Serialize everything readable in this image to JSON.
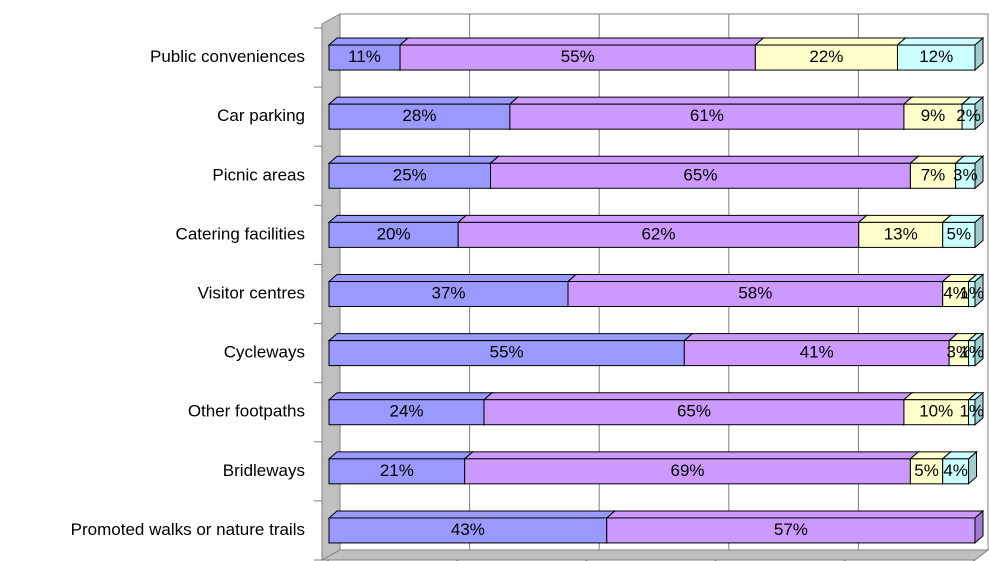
{
  "chart_data": {
    "type": "bar3d_stacked_horizontal",
    "categories": [
      "Public conveniences",
      "Car parking",
      "Picnic areas",
      "Catering facilities",
      "Visitor centres",
      "Cycleways",
      "Other footpaths",
      "Bridleways",
      "Promoted walks or nature trails"
    ],
    "series": [
      {
        "color": "#9999ff",
        "values": [
          11,
          28,
          25,
          20,
          37,
          55,
          24,
          21,
          43
        ],
        "value_labels": [
          "11%",
          "28%",
          "25%",
          "20%",
          "37%",
          "55%",
          "24%",
          "21%",
          "43%"
        ]
      },
      {
        "color": "#cc99ff",
        "values": [
          55,
          61,
          65,
          62,
          58,
          41,
          65,
          69,
          57
        ],
        "value_labels": [
          "55%",
          "61%",
          "65%",
          "62%",
          "58%",
          "41%",
          "65%",
          "69%",
          "57%"
        ]
      },
      {
        "color": "#ffffcc",
        "values": [
          22,
          9,
          7,
          13,
          4,
          3,
          10,
          5,
          null
        ],
        "value_labels": [
          "22%",
          "9%",
          "7%",
          "13%",
          "4%",
          "3%",
          "10%",
          "5%",
          null
        ]
      },
      {
        "color": "#ccffff",
        "values": [
          12,
          2,
          3,
          5,
          1,
          1,
          1,
          4,
          null
        ],
        "value_labels": [
          "12%",
          "2%",
          "3%",
          "5%",
          "1%",
          "1%",
          "1%",
          "4%",
          null
        ]
      }
    ],
    "xlim": [
      0,
      100
    ],
    "xticks": [
      0,
      20,
      40,
      60,
      80,
      100
    ],
    "grid": true
  }
}
